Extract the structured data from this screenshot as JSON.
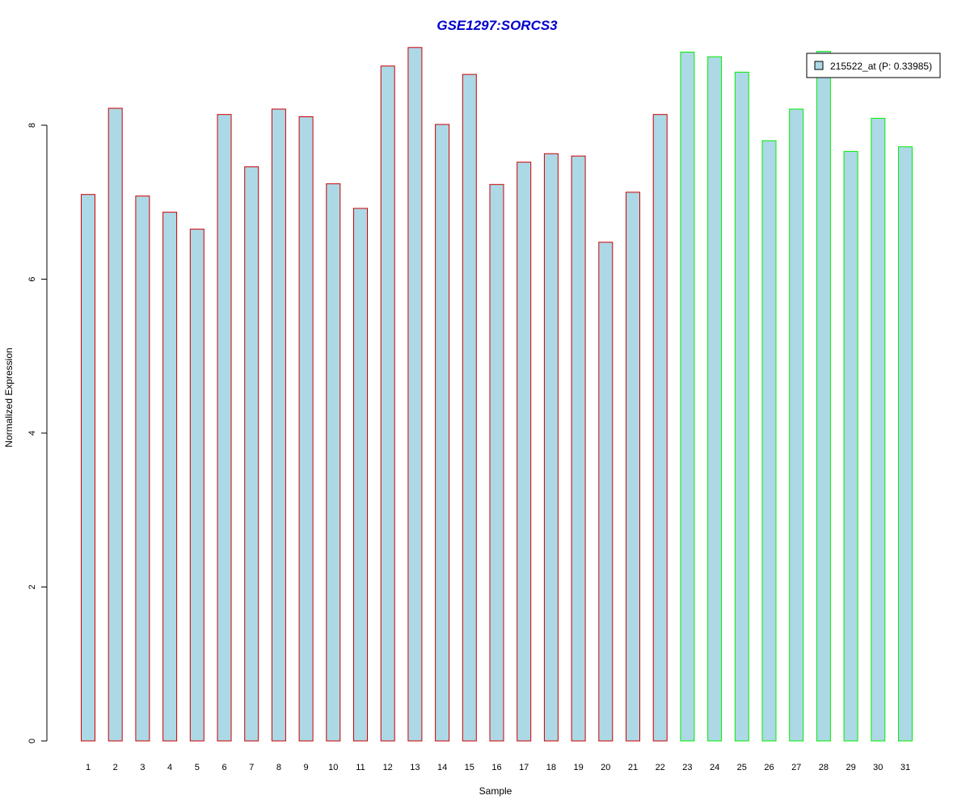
{
  "chart_data": {
    "type": "bar",
    "title": "GSE1297:SORCS3",
    "xlabel": "Sample",
    "ylabel": "Normalized Expression",
    "categories": [
      "1",
      "2",
      "3",
      "4",
      "5",
      "6",
      "7",
      "8",
      "9",
      "10",
      "11",
      "12",
      "13",
      "14",
      "15",
      "16",
      "17",
      "18",
      "19",
      "20",
      "21",
      "22",
      "23",
      "24",
      "25",
      "26",
      "27",
      "28",
      "29",
      "30",
      "31"
    ],
    "series": [
      {
        "name": "215522_at (P: 0.33985)",
        "values": [
          7.1,
          8.22,
          7.08,
          6.87,
          6.65,
          8.14,
          7.46,
          8.21,
          8.11,
          7.24,
          6.92,
          8.77,
          9.01,
          8.01,
          8.66,
          7.23,
          7.52,
          7.63,
          7.6,
          6.48,
          7.13,
          8.14,
          8.95,
          8.89,
          8.69,
          7.8,
          8.21,
          8.96,
          7.66,
          8.09,
          7.72
        ]
      }
    ],
    "groups": [
      {
        "range": [
          1,
          22
        ],
        "border_color": "#cc0000"
      },
      {
        "range": [
          23,
          31
        ],
        "border_color": "#00ee00"
      }
    ],
    "ylim": [
      0,
      9.2
    ],
    "yticks": [
      0,
      2,
      4,
      6,
      8
    ],
    "grid": false,
    "legend_position": "top-right",
    "colors": {
      "bar_fill": "#add8e6",
      "title": "#0000cc",
      "group1_border": "#cc0000",
      "group2_border": "#00ee00"
    }
  }
}
